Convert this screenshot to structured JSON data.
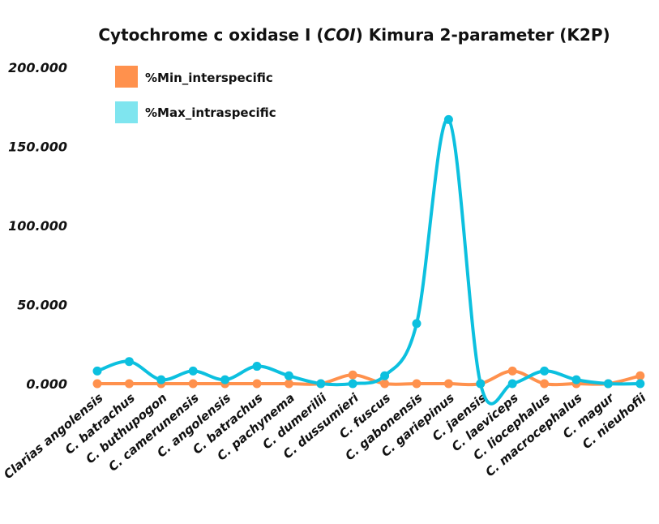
{
  "chart_data": {
    "type": "line",
    "title_parts": [
      "Cytochrome c oxidase I (",
      "COI",
      ") Kimura 2-parameter (K2P)"
    ],
    "categories": [
      "Clarias angolensis",
      "C. batrachus",
      "C. buthupogon",
      "C. camerunensis",
      "C. angolensis",
      "C. batrachus",
      "C. pachynema",
      "C. dumerilii",
      "C. dussumieri",
      "C. fuscus",
      "C. gabonensis",
      "C. gariepinus",
      "C. jaensis",
      "C. laeviceps",
      "C. liocephalus",
      "C. macrocephalus",
      "C. magur",
      "C. nieuhofii"
    ],
    "series": [
      {
        "name": "%Min_interspecific",
        "color": "#ff914d",
        "values": [
          0,
          0,
          0,
          0,
          0,
          0,
          0,
          0,
          5.5,
          0,
          0,
          0,
          0,
          8,
          0,
          0,
          0,
          5
        ]
      },
      {
        "name": "%Max_intraspecific",
        "color": "#0cc0df",
        "values": [
          8,
          14,
          2.5,
          8,
          2.5,
          11,
          5,
          0,
          0,
          5,
          38,
          167,
          0,
          0,
          8,
          2.5,
          0,
          0
        ]
      }
    ],
    "legend_swatches": [
      "#ff914d",
      "#7fe5ef"
    ],
    "ylim": [
      0,
      200
    ],
    "yticks": [
      "0.000",
      "50.000",
      "100.000",
      "150.000",
      "200.000"
    ],
    "legend_position": "top-left",
    "grid": false
  }
}
